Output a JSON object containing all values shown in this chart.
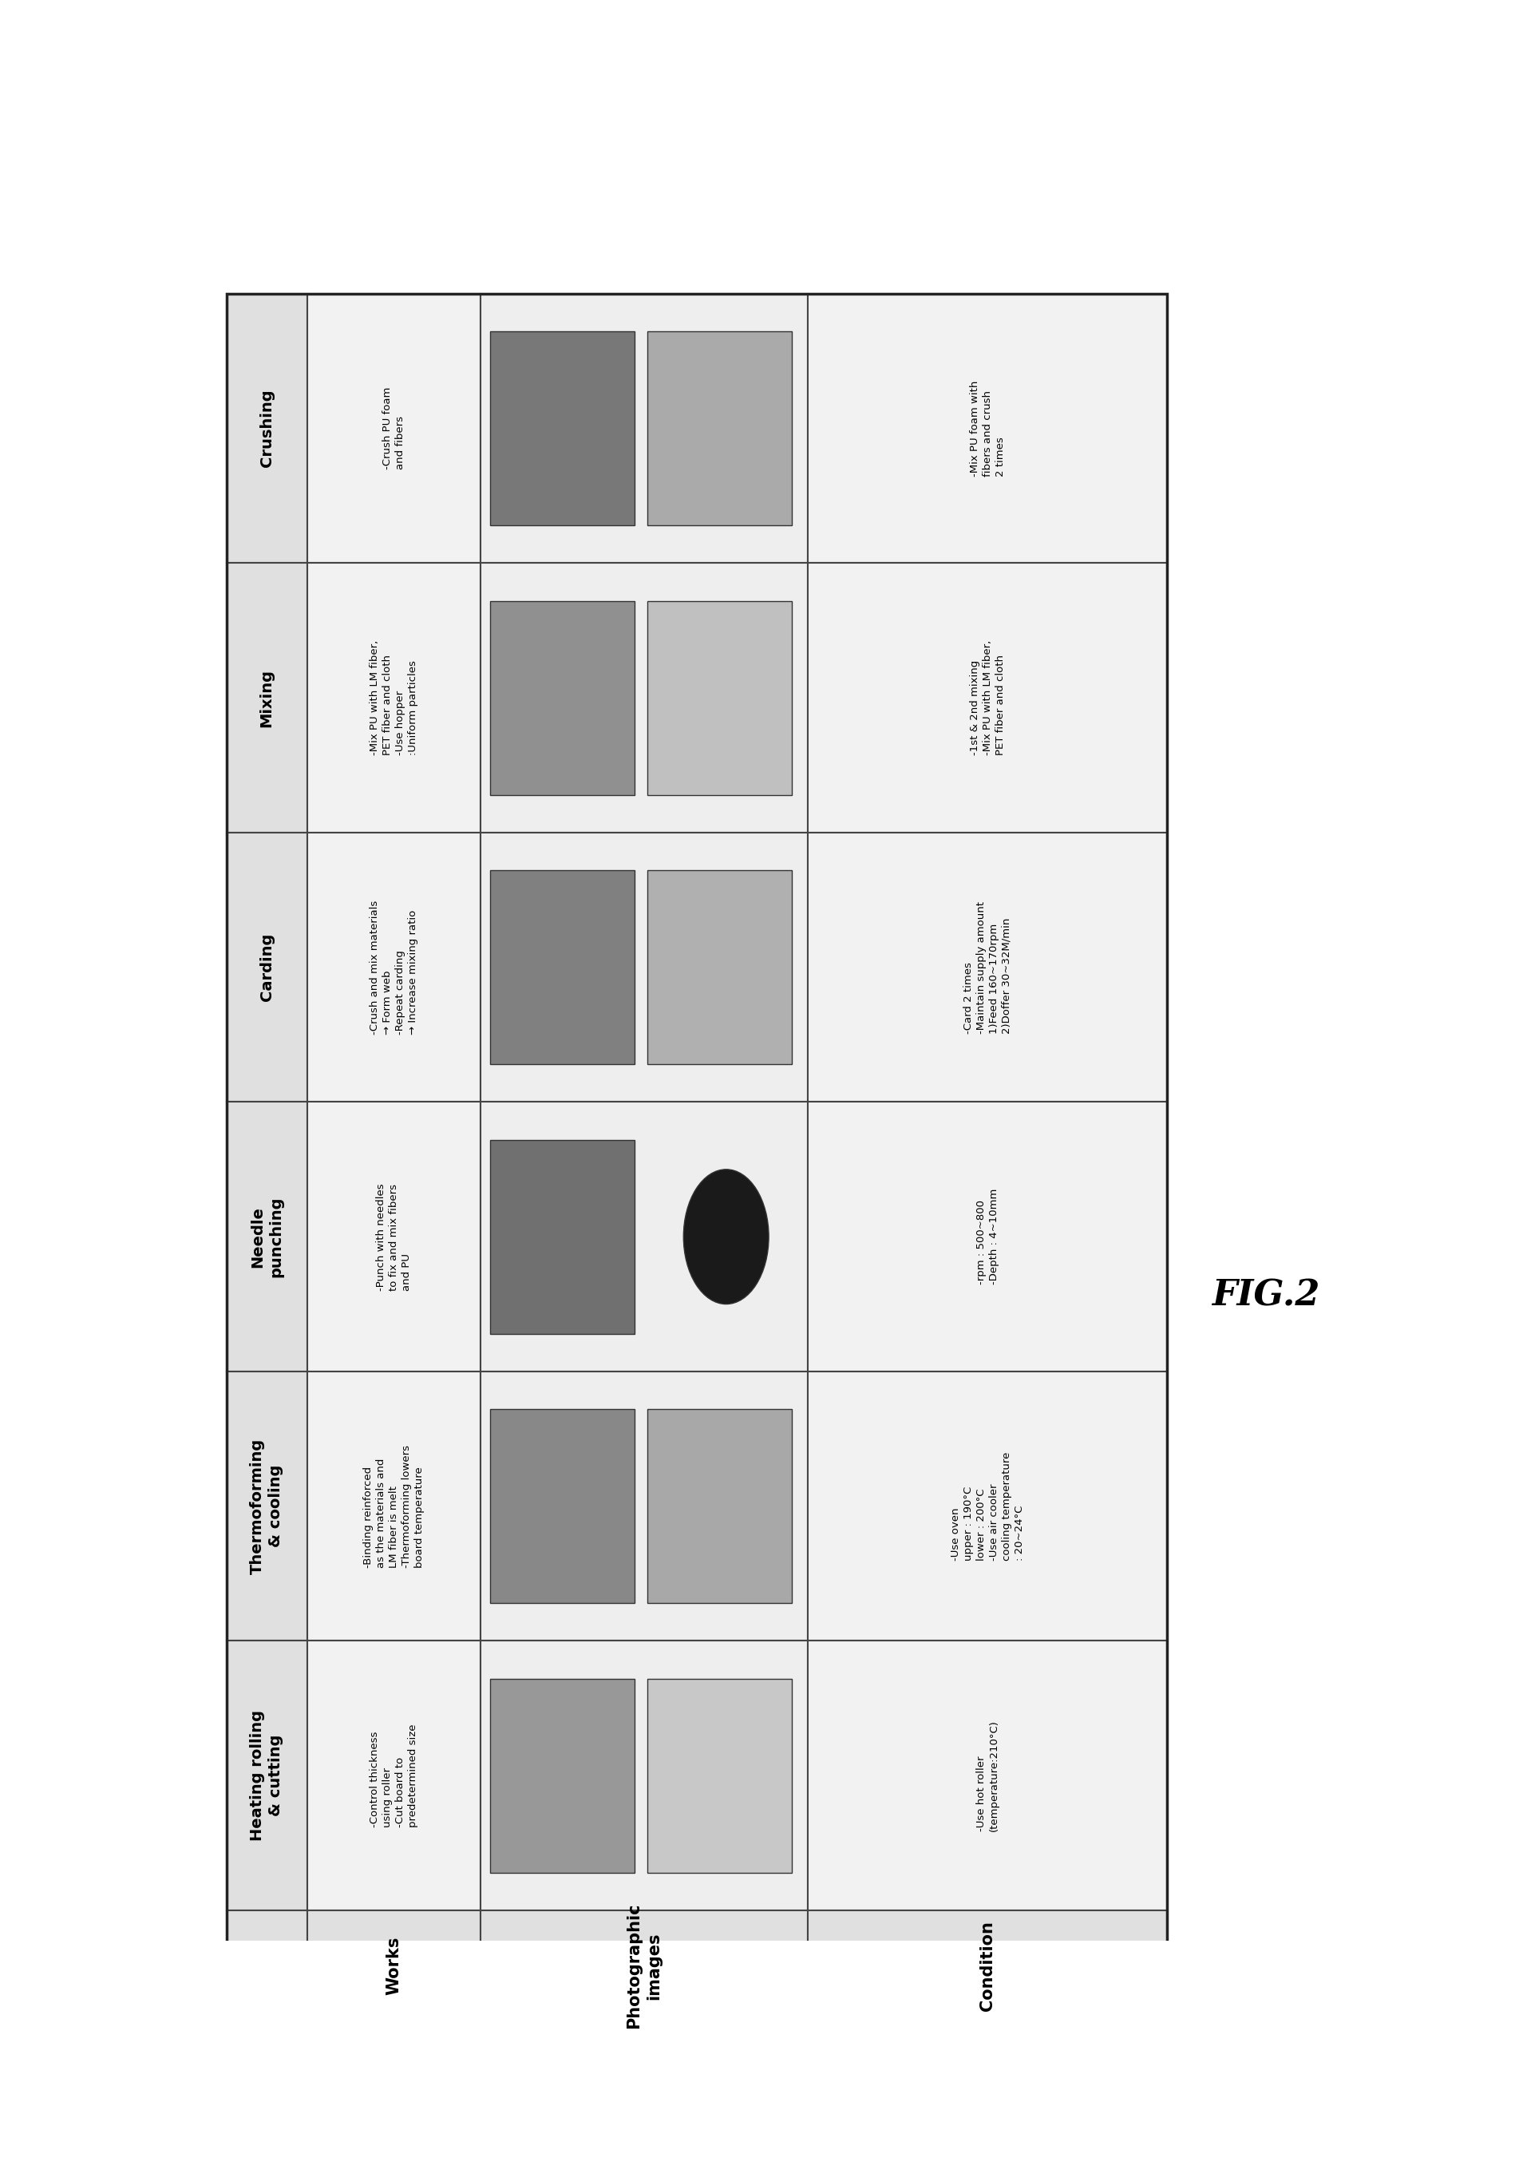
{
  "fig_label": "FIG.2",
  "row_headers": [
    "Crushing",
    "Mixing",
    "Carding",
    "Needle\npunching",
    "Thermoforming\n& cooling",
    "Heating rolling\n& cutting"
  ],
  "col_headers": [
    "Works",
    "Photographic\nimages",
    "Condition"
  ],
  "works_texts": [
    "-Crush PU foam\nand fibers",
    "-Mix PU with LM fiber,\nPET fiber and cloth\n-Use hopper\n:Uniform particles",
    "-Crush and mix materials\n→ Form web\n-Repeat carding\n→ Increase mixing ratio",
    "-Punch with needles\nto fix and mix fibers\nand PU",
    "-Binding reinforced\nas the materials and\nLM fiber is melt\n-Thermoforming lowers\nboard temperature",
    "-Control thickness\nusing roller\n-Cut board to\npredetermined size"
  ],
  "condition_texts": [
    "-Mix PU foam with\nfibers and crush\n2 times",
    "-1st & 2nd mixing\n-Mix PU with LM fiber,\nPET fiber and cloth",
    "-Card 2 times\n-Maintain supply amount\n1)Feed 160~170rpm\n2)Doffer 30~32M/min",
    "-rpm : 500~800\n-Depth : 4~10mm",
    "-Use oven\nupper : 190°C\nlower : 200°C\n-Use air cooler\ncooling temperature\n: 20~24°C",
    "-Use hot roller\n(temperature:210°C)"
  ],
  "bg_color": "#ffffff",
  "cell_bg": "#f2f2f2",
  "header_bg": "#e0e0e0",
  "border_color": "#444444",
  "text_color": "#000000",
  "font_size_header": 14,
  "font_size_body": 9.5,
  "fig_label_size": 32
}
